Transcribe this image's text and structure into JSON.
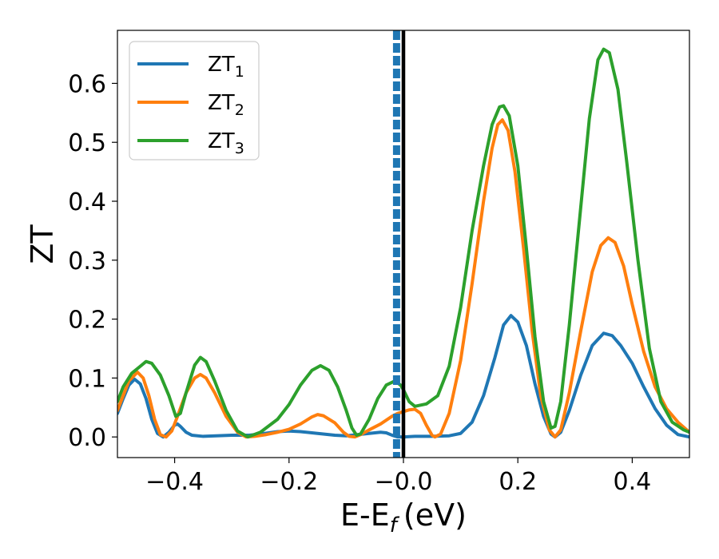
{
  "chart_data": {
    "type": "line",
    "xlabel": "E-E",
    "xlabel_subscript": "f",
    "xlabel_unit": "(eV)",
    "ylabel": "ZT",
    "xlim": [
      -0.5,
      0.5
    ],
    "ylim": [
      -0.035,
      0.69
    ],
    "xticks": [
      -0.4,
      -0.2,
      0.0,
      0.2,
      0.4
    ],
    "xtick_labels": [
      "−0.4",
      "−0.2",
      "−0.0",
      "0.2",
      "0.4"
    ],
    "yticks": [
      0.0,
      0.1,
      0.2,
      0.3,
      0.4,
      0.5,
      0.6
    ],
    "ytick_labels": [
      "0.0",
      "0.1",
      "0.2",
      "0.3",
      "0.4",
      "0.5",
      "0.6"
    ],
    "grid": false,
    "legend_position": "top-left",
    "vlines": [
      {
        "x": -0.012,
        "style": "dashed",
        "color": "#1f77b4"
      },
      {
        "x": 0.0,
        "style": "solid",
        "color": "#000000"
      }
    ],
    "series": [
      {
        "name": "ZT",
        "subscript": "1",
        "color": "#1f77b4",
        "points": [
          [
            -0.5,
            0.04
          ],
          [
            -0.49,
            0.065
          ],
          [
            -0.48,
            0.088
          ],
          [
            -0.47,
            0.098
          ],
          [
            -0.46,
            0.09
          ],
          [
            -0.45,
            0.065
          ],
          [
            -0.44,
            0.03
          ],
          [
            -0.43,
            0.006
          ],
          [
            -0.42,
            0.0
          ],
          [
            -0.41,
            0.008
          ],
          [
            -0.4,
            0.02
          ],
          [
            -0.395,
            0.022
          ],
          [
            -0.39,
            0.018
          ],
          [
            -0.38,
            0.008
          ],
          [
            -0.37,
            0.003
          ],
          [
            -0.35,
            0.001
          ],
          [
            -0.3,
            0.003
          ],
          [
            -0.27,
            0.003
          ],
          [
            -0.25,
            0.005
          ],
          [
            -0.22,
            0.009
          ],
          [
            -0.2,
            0.01
          ],
          [
            -0.18,
            0.009
          ],
          [
            -0.15,
            0.006
          ],
          [
            -0.12,
            0.003
          ],
          [
            -0.1,
            0.002
          ],
          [
            -0.08,
            0.004
          ],
          [
            -0.06,
            0.006
          ],
          [
            -0.04,
            0.008
          ],
          [
            -0.03,
            0.007
          ],
          [
            -0.02,
            0.003
          ],
          [
            -0.01,
            0.0
          ],
          [
            0.0,
            0.0
          ],
          [
            0.02,
            0.001
          ],
          [
            0.05,
            0.001
          ],
          [
            0.08,
            0.002
          ],
          [
            0.1,
            0.006
          ],
          [
            0.12,
            0.025
          ],
          [
            0.14,
            0.07
          ],
          [
            0.16,
            0.135
          ],
          [
            0.175,
            0.19
          ],
          [
            0.188,
            0.206
          ],
          [
            0.2,
            0.195
          ],
          [
            0.215,
            0.155
          ],
          [
            0.23,
            0.09
          ],
          [
            0.245,
            0.035
          ],
          [
            0.258,
            0.005
          ],
          [
            0.265,
            0.0
          ],
          [
            0.275,
            0.008
          ],
          [
            0.29,
            0.045
          ],
          [
            0.31,
            0.105
          ],
          [
            0.33,
            0.155
          ],
          [
            0.35,
            0.176
          ],
          [
            0.365,
            0.172
          ],
          [
            0.38,
            0.155
          ],
          [
            0.4,
            0.125
          ],
          [
            0.42,
            0.085
          ],
          [
            0.44,
            0.048
          ],
          [
            0.46,
            0.02
          ],
          [
            0.48,
            0.004
          ],
          [
            0.5,
            0.0
          ]
        ]
      },
      {
        "name": "ZT",
        "subscript": "2",
        "color": "#ff7f0e",
        "points": [
          [
            -0.5,
            0.045
          ],
          [
            -0.49,
            0.07
          ],
          [
            -0.48,
            0.095
          ],
          [
            -0.465,
            0.11
          ],
          [
            -0.455,
            0.1
          ],
          [
            -0.445,
            0.07
          ],
          [
            -0.435,
            0.03
          ],
          [
            -0.425,
            0.004
          ],
          [
            -0.415,
            0.0
          ],
          [
            -0.405,
            0.01
          ],
          [
            -0.395,
            0.035
          ],
          [
            -0.38,
            0.075
          ],
          [
            -0.365,
            0.1
          ],
          [
            -0.355,
            0.106
          ],
          [
            -0.345,
            0.1
          ],
          [
            -0.33,
            0.075
          ],
          [
            -0.31,
            0.035
          ],
          [
            -0.29,
            0.008
          ],
          [
            -0.275,
            0.0
          ],
          [
            -0.26,
            0.001
          ],
          [
            -0.24,
            0.004
          ],
          [
            -0.22,
            0.008
          ],
          [
            -0.2,
            0.013
          ],
          [
            -0.18,
            0.022
          ],
          [
            -0.16,
            0.034
          ],
          [
            -0.15,
            0.038
          ],
          [
            -0.14,
            0.036
          ],
          [
            -0.12,
            0.024
          ],
          [
            -0.105,
            0.008
          ],
          [
            -0.095,
            0.001
          ],
          [
            -0.085,
            0.0
          ],
          [
            -0.075,
            0.004
          ],
          [
            -0.06,
            0.012
          ],
          [
            -0.04,
            0.022
          ],
          [
            -0.02,
            0.035
          ],
          [
            -0.01,
            0.04
          ],
          [
            0.0,
            0.043
          ],
          [
            0.01,
            0.046
          ],
          [
            0.02,
            0.047
          ],
          [
            0.03,
            0.04
          ],
          [
            0.04,
            0.02
          ],
          [
            0.05,
            0.003
          ],
          [
            0.055,
            0.0
          ],
          [
            0.065,
            0.005
          ],
          [
            0.08,
            0.04
          ],
          [
            0.1,
            0.13
          ],
          [
            0.12,
            0.26
          ],
          [
            0.14,
            0.4
          ],
          [
            0.155,
            0.49
          ],
          [
            0.165,
            0.53
          ],
          [
            0.173,
            0.538
          ],
          [
            0.183,
            0.52
          ],
          [
            0.195,
            0.45
          ],
          [
            0.21,
            0.32
          ],
          [
            0.225,
            0.18
          ],
          [
            0.24,
            0.07
          ],
          [
            0.255,
            0.012
          ],
          [
            0.265,
            0.0
          ],
          [
            0.275,
            0.012
          ],
          [
            0.29,
            0.075
          ],
          [
            0.31,
            0.18
          ],
          [
            0.33,
            0.28
          ],
          [
            0.345,
            0.325
          ],
          [
            0.358,
            0.338
          ],
          [
            0.37,
            0.33
          ],
          [
            0.385,
            0.29
          ],
          [
            0.4,
            0.225
          ],
          [
            0.42,
            0.145
          ],
          [
            0.44,
            0.085
          ],
          [
            0.46,
            0.048
          ],
          [
            0.48,
            0.025
          ],
          [
            0.5,
            0.008
          ]
        ]
      },
      {
        "name": "ZT",
        "subscript": "3",
        "color": "#2ca02c",
        "points": [
          [
            -0.5,
            0.06
          ],
          [
            -0.49,
            0.085
          ],
          [
            -0.475,
            0.108
          ],
          [
            -0.46,
            0.12
          ],
          [
            -0.45,
            0.128
          ],
          [
            -0.44,
            0.125
          ],
          [
            -0.425,
            0.105
          ],
          [
            -0.41,
            0.07
          ],
          [
            -0.398,
            0.035
          ],
          [
            -0.39,
            0.04
          ],
          [
            -0.38,
            0.075
          ],
          [
            -0.365,
            0.122
          ],
          [
            -0.355,
            0.135
          ],
          [
            -0.345,
            0.128
          ],
          [
            -0.33,
            0.095
          ],
          [
            -0.31,
            0.045
          ],
          [
            -0.29,
            0.01
          ],
          [
            -0.272,
            0.0
          ],
          [
            -0.25,
            0.008
          ],
          [
            -0.22,
            0.03
          ],
          [
            -0.2,
            0.055
          ],
          [
            -0.18,
            0.088
          ],
          [
            -0.16,
            0.113
          ],
          [
            -0.145,
            0.121
          ],
          [
            -0.13,
            0.113
          ],
          [
            -0.115,
            0.085
          ],
          [
            -0.1,
            0.045
          ],
          [
            -0.09,
            0.015
          ],
          [
            -0.082,
            0.003
          ],
          [
            -0.075,
            0.005
          ],
          [
            -0.06,
            0.03
          ],
          [
            -0.045,
            0.065
          ],
          [
            -0.03,
            0.088
          ],
          [
            -0.015,
            0.095
          ],
          [
            -0.005,
            0.088
          ],
          [
            0.0,
            0.08
          ],
          [
            0.01,
            0.06
          ],
          [
            0.02,
            0.052
          ],
          [
            0.04,
            0.056
          ],
          [
            0.06,
            0.07
          ],
          [
            0.08,
            0.12
          ],
          [
            0.1,
            0.22
          ],
          [
            0.12,
            0.35
          ],
          [
            0.14,
            0.46
          ],
          [
            0.155,
            0.53
          ],
          [
            0.168,
            0.56
          ],
          [
            0.175,
            0.562
          ],
          [
            0.185,
            0.545
          ],
          [
            0.2,
            0.46
          ],
          [
            0.215,
            0.32
          ],
          [
            0.23,
            0.17
          ],
          [
            0.245,
            0.06
          ],
          [
            0.258,
            0.015
          ],
          [
            0.265,
            0.018
          ],
          [
            0.275,
            0.06
          ],
          [
            0.29,
            0.19
          ],
          [
            0.31,
            0.39
          ],
          [
            0.325,
            0.54
          ],
          [
            0.34,
            0.64
          ],
          [
            0.35,
            0.658
          ],
          [
            0.36,
            0.652
          ],
          [
            0.375,
            0.59
          ],
          [
            0.39,
            0.47
          ],
          [
            0.41,
            0.3
          ],
          [
            0.43,
            0.15
          ],
          [
            0.45,
            0.06
          ],
          [
            0.47,
            0.025
          ],
          [
            0.49,
            0.012
          ],
          [
            0.5,
            0.008
          ]
        ]
      }
    ]
  }
}
